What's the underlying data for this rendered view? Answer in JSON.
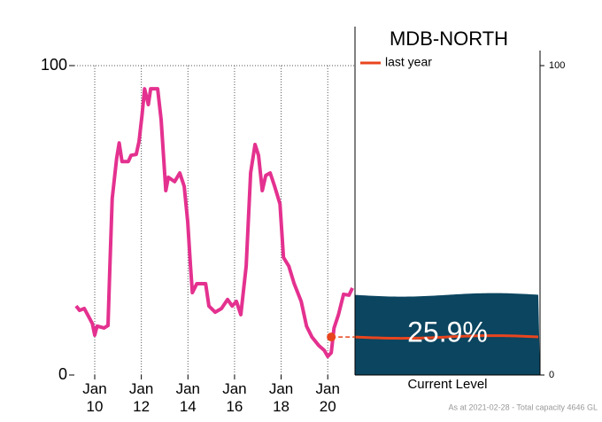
{
  "chart_data": {
    "type": "line",
    "title": "MDB-NORTH",
    "xlim": [
      2009.05,
      2021.17
    ],
    "xticks": [
      {
        "value": 2010,
        "label": "Jan 10"
      },
      {
        "value": 2012,
        "label": "Jan 12"
      },
      {
        "value": 2014,
        "label": "Jan 14"
      },
      {
        "value": 2016,
        "label": "Jan 16"
      },
      {
        "value": 2018,
        "label": "Jan 18"
      },
      {
        "value": 2020,
        "label": "Jan 20"
      }
    ],
    "ylim": [
      0,
      100
    ],
    "yticks": [
      0,
      100
    ],
    "y2lim": [
      0,
      100
    ],
    "y2ticks": [
      0,
      100
    ],
    "grid": true,
    "x": [
      2009.2,
      2009.35,
      2009.55,
      2009.73,
      2009.9,
      2010.0,
      2010.1,
      2010.4,
      2010.57,
      2010.65,
      2010.75,
      2010.94,
      2011.05,
      2011.17,
      2011.44,
      2011.56,
      2011.78,
      2011.9,
      2012.03,
      2012.14,
      2012.3,
      2012.4,
      2012.7,
      2012.85,
      2013.05,
      2013.16,
      2013.43,
      2013.65,
      2013.84,
      2013.99,
      2014.11,
      2014.19,
      2014.38,
      2014.76,
      2014.9,
      2015.17,
      2015.44,
      2015.7,
      2015.9,
      2016.08,
      2016.27,
      2016.5,
      2016.69,
      2016.88,
      2017.03,
      2017.19,
      2017.34,
      2017.53,
      2017.72,
      2017.95,
      2018.1,
      2018.33,
      2018.56,
      2018.86,
      2019.09,
      2019.32,
      2019.62,
      2019.85,
      2020.0,
      2020.15,
      2020.27,
      2020.46,
      2020.68,
      2020.91,
      2021.06
    ],
    "series": [
      {
        "color": "#e4318f",
        "values": [
          22.3,
          20.9,
          21.5,
          19,
          16.6,
          12.9,
          15.8,
          15.2,
          16,
          35,
          57,
          70,
          75,
          69,
          69,
          71,
          71.3,
          75.4,
          84,
          92.5,
          87.4,
          92.5,
          92.5,
          82.5,
          59.6,
          63.9,
          62.5,
          65.3,
          61,
          49.6,
          35.2,
          26.6,
          29.5,
          29.5,
          22.3,
          20.3,
          21.5,
          24.4,
          22.3,
          23.8,
          19.5,
          35.2,
          65.3,
          74.5,
          71,
          59.6,
          64.5,
          65.3,
          61,
          55.3,
          38,
          35.2,
          29.5,
          23.8,
          15.8,
          12.3,
          9.5,
          8,
          6,
          7.2,
          15.2,
          19.5,
          26.1,
          25.8,
          28.1
        ]
      }
    ],
    "last_year": {
      "name": "last year",
      "x": 2020.15,
      "value": 12.3,
      "color": "#e8451e"
    },
    "current_level": {
      "label": "Current Level",
      "value": 25.9,
      "value_label": "25.9%",
      "color": "#0b4560"
    },
    "footnote": "As at 2021-02-28 - Total capacity 4646 GL"
  }
}
